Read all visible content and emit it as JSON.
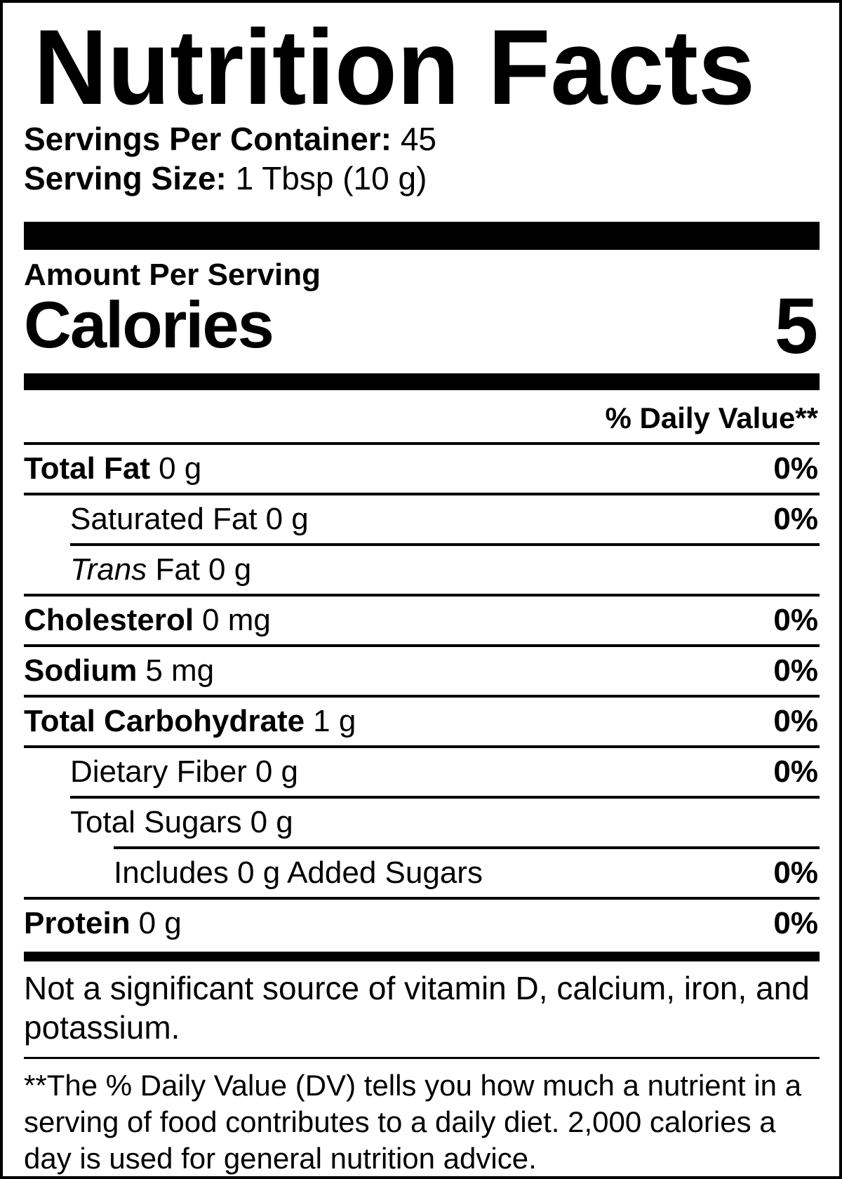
{
  "title": "Nutrition Facts",
  "servings": {
    "label": "Servings Per Container:",
    "value": "45"
  },
  "serving_size": {
    "label": "Serving Size:",
    "value": "1 Tbsp (10 g)"
  },
  "amount_per_serving": "Amount Per Serving",
  "calories": {
    "label": "Calories",
    "value": "5"
  },
  "daily_value_header": "% Daily Value**",
  "rows": [
    {
      "name": "Total Fat",
      "amount": "0 g",
      "dv": "0%"
    },
    {
      "name": "Saturated Fat",
      "amount": "0 g",
      "dv": "0%"
    },
    {
      "name_italic": "Trans",
      "name": " Fat",
      "amount": "0 g",
      "dv": ""
    },
    {
      "name": "Cholesterol",
      "amount": "0 mg",
      "dv": "0%"
    },
    {
      "name": "Sodium",
      "amount": "5 mg",
      "dv": "0%"
    },
    {
      "name": "Total Carbohydrate",
      "amount": "1 g",
      "dv": "0%"
    },
    {
      "name": "Dietary Fiber",
      "amount": "0 g",
      "dv": "0%"
    },
    {
      "name": "Total Sugars",
      "amount": "0 g",
      "dv": ""
    },
    {
      "name": "Includes 0 g Added Sugars",
      "amount": "",
      "dv": "0%"
    },
    {
      "name": "Protein",
      "amount": "0 g",
      "dv": "0%"
    }
  ],
  "disclaimer": "Not a significant source of vitamin D, calcium, iron, and potassium.",
  "footnote": "**The % Daily Value (DV) tells you how much a nutrient in a serving of food contributes to a daily diet. 2,000 calories a day is used for general nutrition advice.",
  "colors": {
    "ink": "#000000",
    "paper": "#ffffff"
  }
}
